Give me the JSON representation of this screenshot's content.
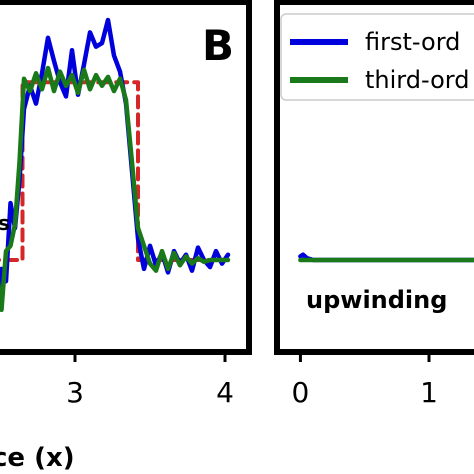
{
  "chart_data": [
    {
      "type": "line",
      "panel_label": "B",
      "xlabel": "ce (x)",
      "xlim": [
        2.3,
        4.1
      ],
      "ylim": [
        -0.45,
        1.35
      ],
      "xticks": [
        3,
        4
      ],
      "series": [
        {
          "kind": "reference",
          "style": "dashed",
          "color": "#d62728",
          "x": [
            2.3,
            2.65,
            2.65,
            3.42,
            3.42,
            4.0
          ],
          "y": [
            0.0,
            0.0,
            1.0,
            1.0,
            0.0,
            0.0
          ]
        },
        {
          "color": "#0000dd",
          "x": [
            2.3,
            2.33,
            2.36,
            2.39,
            2.42,
            2.45,
            2.48,
            2.51,
            2.54,
            2.57,
            2.6,
            2.63,
            2.66,
            2.7,
            2.74,
            2.78,
            2.82,
            2.86,
            2.9,
            2.94,
            2.98,
            3.02,
            3.06,
            3.1,
            3.14,
            3.18,
            3.22,
            3.26,
            3.3,
            3.34,
            3.38,
            3.42,
            3.46,
            3.5,
            3.54,
            3.58,
            3.62,
            3.66,
            3.7,
            3.74,
            3.78,
            3.82,
            3.86,
            3.9,
            3.94,
            3.98,
            4.02
          ],
          "y": [
            0.03,
            -0.08,
            -0.05,
            -0.25,
            -0.18,
            -0.36,
            -0.24,
            -0.05,
            -0.12,
            0.32,
            0.18,
            0.45,
            0.85,
            0.98,
            0.88,
            1.05,
            1.25,
            1.12,
            1.0,
            0.92,
            1.18,
            0.93,
            1.1,
            1.28,
            1.2,
            1.22,
            1.35,
            1.15,
            1.06,
            0.88,
            0.5,
            0.12,
            -0.05,
            0.08,
            -0.03,
            0.04,
            -0.07,
            0.05,
            -0.02,
            0.03,
            -0.06,
            0.07,
            0.0,
            -0.04,
            0.05,
            -0.02,
            0.03
          ]
        },
        {
          "color": "#1a7a1a",
          "x": [
            2.3,
            2.33,
            2.36,
            2.39,
            2.42,
            2.45,
            2.48,
            2.51,
            2.54,
            2.57,
            2.6,
            2.63,
            2.66,
            2.7,
            2.74,
            2.78,
            2.82,
            2.86,
            2.9,
            2.94,
            2.98,
            3.02,
            3.06,
            3.1,
            3.14,
            3.18,
            3.22,
            3.26,
            3.3,
            3.34,
            3.38,
            3.42,
            3.46,
            3.5,
            3.54,
            3.58,
            3.62,
            3.66,
            3.7,
            3.74,
            3.78,
            3.82,
            3.86,
            3.9,
            3.94,
            3.98,
            4.02
          ],
          "y": [
            0.05,
            -0.1,
            0.02,
            -0.15,
            -0.05,
            -0.2,
            -0.08,
            -0.28,
            0.05,
            0.08,
            0.2,
            0.55,
            1.02,
            0.95,
            1.05,
            0.96,
            1.08,
            0.95,
            1.06,
            0.98,
            1.04,
            0.94,
            1.07,
            0.96,
            1.04,
            0.98,
            1.03,
            0.95,
            1.02,
            0.9,
            0.55,
            0.18,
            0.08,
            -0.02,
            -0.06,
            0.05,
            -0.05,
            0.04,
            -0.03,
            0.02,
            -0.02,
            0.01,
            -0.01,
            0.0,
            0.0,
            0.0,
            0.0
          ]
        }
      ]
    },
    {
      "type": "line",
      "xlim": [
        -0.05,
        1.35
      ],
      "ylim": [
        -0.45,
        1.35
      ],
      "xticks": [
        0,
        1
      ],
      "annotation": "upwinding",
      "legend": {
        "position": "top",
        "entries": [
          "first-ord",
          "third-ord"
        ]
      },
      "series": [
        {
          "name": "first-ord",
          "color": "#0000dd",
          "x": [
            0.0,
            0.02,
            0.05,
            0.1,
            0.2,
            0.4,
            0.6,
            0.8,
            1.0,
            1.2,
            1.35
          ],
          "y": [
            0.02,
            0.03,
            0.01,
            0.0,
            0.0,
            0.0,
            0.0,
            0.0,
            0.0,
            0.0,
            0.0
          ]
        },
        {
          "name": "third-ord",
          "color": "#1a7a1a",
          "x": [
            0.0,
            0.05,
            0.1,
            0.2,
            0.4,
            0.6,
            0.8,
            1.0,
            1.2,
            1.35
          ],
          "y": [
            0.0,
            0.0,
            0.0,
            0.0,
            0.0,
            0.0,
            0.0,
            0.0,
            0.0,
            0.0
          ]
        }
      ]
    }
  ]
}
